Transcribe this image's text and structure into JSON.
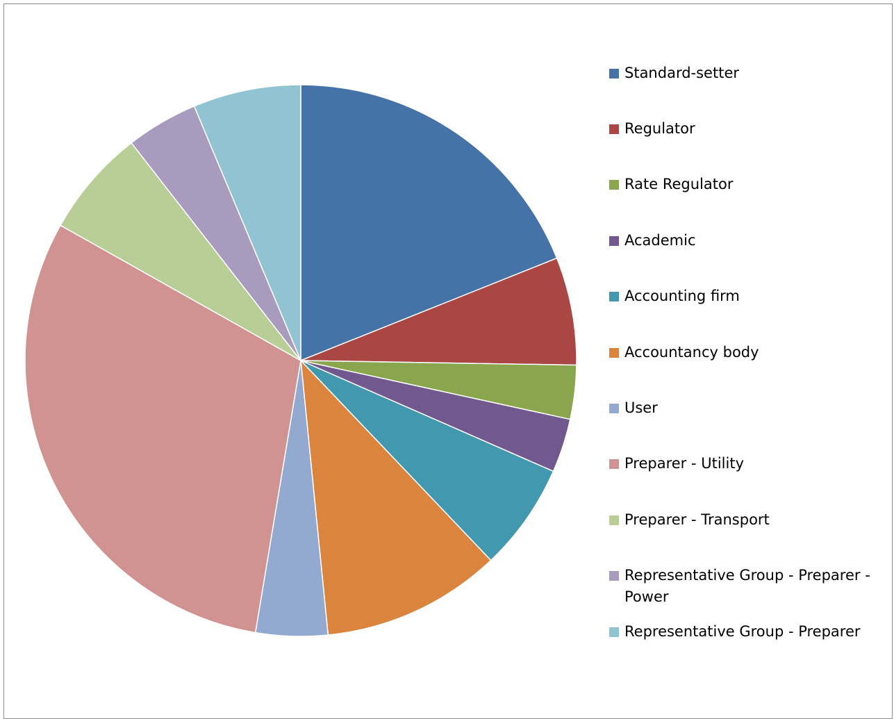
{
  "chart_data": {
    "type": "pie",
    "title": "",
    "categories": [
      "Standard-setter",
      "Regulator",
      "Rate Regulator",
      "Academic",
      "Accounting firm",
      "Accountancy body",
      "User",
      "Preparer - Utility",
      "Preparer - Transport",
      "Representative Group - Preparer - Power",
      "Representative Group - Preparer"
    ],
    "values": [
      9,
      3,
      1.5,
      1.5,
      3,
      5,
      2,
      14.5,
      3,
      2,
      3
    ],
    "colors": [
      "#4572A7",
      "#AA4643",
      "#89A54E",
      "#71588F",
      "#4198AF",
      "#DB843D",
      "#93A9CF",
      "#D19392",
      "#B9CD96",
      "#A99BBD",
      "#92C3D2"
    ],
    "legend_position": "right",
    "start_angle_deg": 0,
    "direction": "clockwise"
  }
}
